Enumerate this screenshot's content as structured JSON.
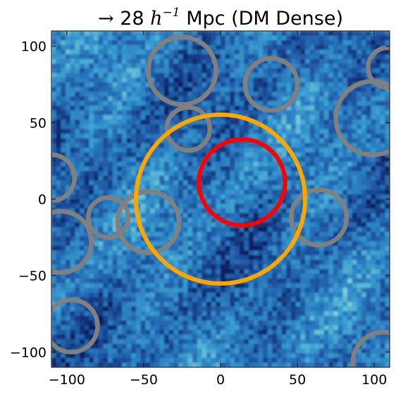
{
  "title": {
    "arrow": "→",
    "value": "28",
    "h": "h",
    "exponent": "−1",
    "rest": "Mpc (DM Dense)"
  },
  "chart_data": {
    "type": "heatmap",
    "title": "→ 28 h^-1 Mpc (DM Dense)",
    "xlabel": "",
    "ylabel": "",
    "xlim": [
      -110,
      110
    ],
    "ylim": [
      -110,
      110
    ],
    "xticks": [
      -100,
      -50,
      0,
      50,
      100
    ],
    "yticks": [
      -100,
      -50,
      0,
      50,
      100
    ],
    "xtick_labels": [
      "−100",
      "−50",
      "0",
      "50",
      "100"
    ],
    "ytick_labels": [
      "−100",
      "−50",
      "0",
      "50",
      "100"
    ],
    "colormap": [
      "#0b1f5c",
      "#1d4f9c",
      "#2a7cc0",
      "#3a9fcf",
      "#7fd0d8",
      "#e6f7b6"
    ],
    "grid": false,
    "circles": [
      {
        "role": "target",
        "color": "#ffa500",
        "cx": 0,
        "cy": 0,
        "r": 55
      },
      {
        "role": "highlight",
        "color": "#ff0000",
        "cx": 14,
        "cy": 11,
        "r": 28
      },
      {
        "role": "neighbor",
        "color": "#808080",
        "cx": -25,
        "cy": 84,
        "r": 22
      },
      {
        "role": "neighbor",
        "color": "#808080",
        "cx": 33,
        "cy": 75,
        "r": 17
      },
      {
        "role": "neighbor",
        "color": "#808080",
        "cx": 109,
        "cy": 86,
        "r": 13
      },
      {
        "role": "neighbor",
        "color": "#808080",
        "cx": 99,
        "cy": 53,
        "r": 24
      },
      {
        "role": "neighbor",
        "color": "#808080",
        "cx": -21,
        "cy": 46,
        "r": 14
      },
      {
        "role": "neighbor",
        "color": "#808080",
        "cx": -110,
        "cy": 14,
        "r": 15
      },
      {
        "role": "neighbor",
        "color": "#808080",
        "cx": -73,
        "cy": -12,
        "r": 13
      },
      {
        "role": "neighbor",
        "color": "#808080",
        "cx": -47,
        "cy": -15,
        "r": 20
      },
      {
        "role": "neighbor",
        "color": "#808080",
        "cx": -104,
        "cy": -28,
        "r": 20
      },
      {
        "role": "neighbor",
        "color": "#808080",
        "cx": 64,
        "cy": -12,
        "r": 18
      },
      {
        "role": "neighbor",
        "color": "#808080",
        "cx": -97,
        "cy": -83,
        "r": 17
      },
      {
        "role": "neighbor",
        "color": "#808080",
        "cx": 106,
        "cy": -107,
        "r": 20
      }
    ]
  }
}
